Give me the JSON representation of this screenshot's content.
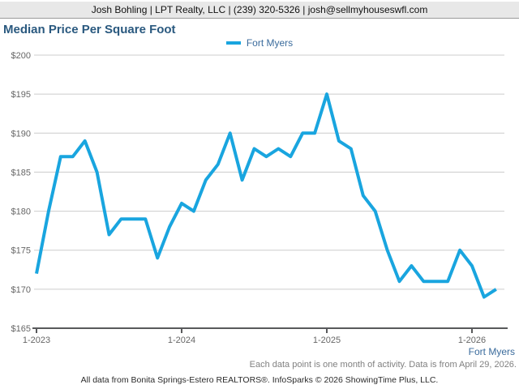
{
  "header": {
    "agent_info": "Josh Bohling | LPT Realty, LLC | (239) 320-5326 | josh@sellmyhouseswfl.com"
  },
  "title": "Median Price Per Square Foot",
  "legend": {
    "items": [
      {
        "label": "Fort Myers",
        "color": "#19a5df"
      }
    ]
  },
  "footer": {
    "series_label": "Fort Myers",
    "note": "Each data point is one month of activity. Data is from April 29, 2026.",
    "attribution": "All data from Bonita Springs-Estero REALTORS®. InfoSparks © 2026 ShowingTime Plus, LLC."
  },
  "colors": {
    "line": "#19a5df",
    "title_text": "#2a597f",
    "legend_text": "#3a6b9c",
    "grid": "#cccccc",
    "axis_line": "#58595b",
    "axis_text": "#666666",
    "header_bg": "#e8e8e8",
    "header_border": "#9b9b9b",
    "note_text": "#808080",
    "attribution_text": "#2b2b2b"
  },
  "chart_data": {
    "type": "line",
    "title": "Median Price Per Square Foot",
    "xlabel": "",
    "ylabel": "",
    "ylim": [
      165,
      200
    ],
    "y_tick_step": 5,
    "y_tick_prefix": "$",
    "grid": true,
    "legend_position": "top-center",
    "x_tick_labels": [
      "1-2023",
      "1-2024",
      "1-2025",
      "1-2026"
    ],
    "x_tick_indexes": [
      0,
      12,
      24,
      36
    ],
    "categories": [
      "1-2023",
      "2-2023",
      "3-2023",
      "4-2023",
      "5-2023",
      "6-2023",
      "7-2023",
      "8-2023",
      "9-2023",
      "10-2023",
      "11-2023",
      "12-2023",
      "1-2024",
      "2-2024",
      "3-2024",
      "4-2024",
      "5-2024",
      "6-2024",
      "7-2024",
      "8-2024",
      "9-2024",
      "10-2024",
      "11-2024",
      "12-2024",
      "1-2025",
      "2-2025",
      "3-2025",
      "4-2025",
      "5-2025",
      "6-2025",
      "7-2025",
      "8-2025",
      "9-2025",
      "10-2025",
      "11-2025",
      "12-2025",
      "1-2026",
      "2-2026",
      "3-2026"
    ],
    "series": [
      {
        "name": "Fort Myers",
        "color": "#19a5df",
        "values": [
          172,
          180,
          187,
          187,
          189,
          185,
          177,
          179,
          179,
          179,
          174,
          178,
          181,
          180,
          184,
          186,
          190,
          184,
          188,
          187,
          188,
          187,
          190,
          190,
          195,
          189,
          188,
          182,
          180,
          175,
          171,
          173,
          171,
          171,
          171,
          175,
          173,
          169,
          170
        ]
      }
    ]
  }
}
